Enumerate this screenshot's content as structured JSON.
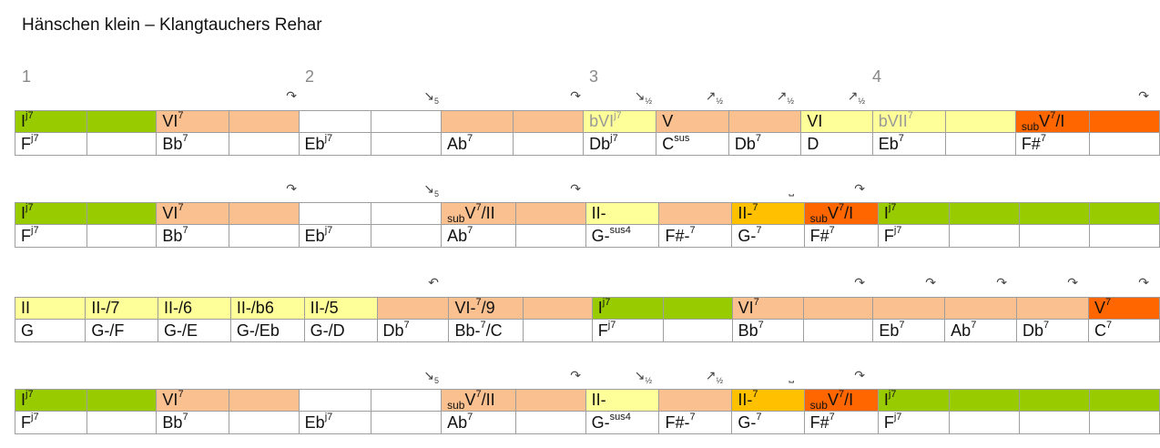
{
  "title": "Hänschen klein – Klangtauchers Rehar",
  "bar_numbers": [
    "1",
    "2",
    "3",
    "4"
  ],
  "glyphs": {
    "turn": "↷",
    "turn2": "↶",
    "down": "↘",
    "up": "↗",
    "bracket": "⎵",
    "five": "5",
    "half": "½"
  },
  "rows": [
    {
      "degrees": [
        {
          "t": "I",
          "s": "j7",
          "c": "green"
        },
        {
          "t": "",
          "c": "green"
        },
        {
          "t": "VI",
          "s": "7",
          "c": "peach"
        },
        {
          "t": "",
          "c": "peach"
        },
        {
          "t": "",
          "c": "white"
        },
        {
          "t": "",
          "c": "white"
        },
        {
          "t": "",
          "c": "peach"
        },
        {
          "t": "",
          "c": "peach"
        },
        {
          "t": "bVI",
          "s": "j7",
          "c": "yellow",
          "grey": true
        },
        {
          "t": "V",
          "c": "peach"
        },
        {
          "t": "",
          "c": "peach"
        },
        {
          "t": "VI",
          "c": "yellow"
        },
        {
          "t": "bVII",
          "s": "7",
          "c": "yellow",
          "grey": true
        },
        {
          "t": "",
          "c": "yellow"
        },
        {
          "p": "sub",
          "t": "V",
          "s": "7",
          "q": "/I",
          "c": "orange"
        },
        {
          "t": "",
          "c": "orange"
        }
      ],
      "chords": [
        {
          "t": "F",
          "s": "j7"
        },
        {
          "t": ""
        },
        {
          "t": "Bb",
          "s": "7"
        },
        {
          "t": ""
        },
        {
          "t": "Eb",
          "s": "j7"
        },
        {
          "t": ""
        },
        {
          "t": "Ab",
          "s": "7"
        },
        {
          "t": ""
        },
        {
          "t": "Db",
          "s": "j7"
        },
        {
          "t": "C",
          "s": "sus"
        },
        {
          "t": "Db",
          "s": "7"
        },
        {
          "t": "D"
        },
        {
          "t": "Eb",
          "s": "7"
        },
        {
          "t": ""
        },
        {
          "t": "F#",
          "s": "7"
        },
        {
          "t": ""
        }
      ]
    },
    {
      "degrees": [
        {
          "t": "I",
          "s": "j7",
          "c": "green"
        },
        {
          "t": "",
          "c": "green"
        },
        {
          "t": "VI",
          "s": "7",
          "c": "peach"
        },
        {
          "t": "",
          "c": "peach"
        },
        {
          "t": "",
          "c": "white"
        },
        {
          "t": "",
          "c": "white"
        },
        {
          "p": "sub",
          "t": "V",
          "s": "7",
          "q": "/II",
          "c": "peach"
        },
        {
          "t": "",
          "c": "peach"
        },
        {
          "t": "II-",
          "c": "yellow"
        },
        {
          "t": "",
          "c": "peach"
        },
        {
          "t": "II-",
          "s": "7",
          "c": "amber"
        },
        {
          "p": "sub",
          "t": "V",
          "s": "7",
          "q": "/I",
          "c": "orange"
        },
        {
          "t": "I",
          "s": "j7",
          "c": "green"
        },
        {
          "t": "",
          "c": "green"
        },
        {
          "t": "",
          "c": "green"
        },
        {
          "t": "",
          "c": "green"
        }
      ],
      "chords": [
        {
          "t": "F",
          "s": "j7"
        },
        {
          "t": ""
        },
        {
          "t": "Bb",
          "s": "7"
        },
        {
          "t": ""
        },
        {
          "t": "Eb",
          "s": "j7"
        },
        {
          "t": ""
        },
        {
          "t": "Ab",
          "s": "7"
        },
        {
          "t": ""
        },
        {
          "t": "G-",
          "s": "sus4"
        },
        {
          "t": "F#-",
          "s": "7"
        },
        {
          "t": "G-",
          "s": "7"
        },
        {
          "t": "F#",
          "s": "7"
        },
        {
          "t": "F",
          "s": "j7"
        },
        {
          "t": ""
        },
        {
          "t": ""
        },
        {
          "t": ""
        }
      ]
    },
    {
      "degrees": [
        {
          "t": "II",
          "c": "yellow"
        },
        {
          "t": "II-/7",
          "c": "yellow"
        },
        {
          "t": "II-/6",
          "c": "yellow"
        },
        {
          "t": "II-/b6",
          "c": "yellow"
        },
        {
          "t": "II-/5",
          "c": "yellow"
        },
        {
          "t": "",
          "c": "peach"
        },
        {
          "t": "VI-",
          "s": "7",
          "q": "/9",
          "c": "peach"
        },
        {
          "t": "",
          "c": "peach"
        },
        {
          "t": "I",
          "s": "j7",
          "c": "green"
        },
        {
          "t": "",
          "c": "green"
        },
        {
          "t": "VI",
          "s": "7",
          "c": "peach"
        },
        {
          "t": "",
          "c": "peach"
        },
        {
          "t": "",
          "c": "peach"
        },
        {
          "t": "",
          "c": "peach"
        },
        {
          "t": "",
          "c": "peach"
        },
        {
          "t": "V",
          "s": "7",
          "c": "orange"
        }
      ],
      "chords": [
        {
          "t": "G"
        },
        {
          "t": "G-/F"
        },
        {
          "t": "G-/E"
        },
        {
          "t": "G-/Eb"
        },
        {
          "t": "G-/D"
        },
        {
          "t": "Db",
          "s": "7"
        },
        {
          "t": "Bb-",
          "s": "7",
          "q": "/C"
        },
        {
          "t": ""
        },
        {
          "t": "F",
          "s": "j7"
        },
        {
          "t": ""
        },
        {
          "t": "Bb",
          "s": "7"
        },
        {
          "t": ""
        },
        {
          "t": "Eb",
          "s": "7"
        },
        {
          "t": "Ab",
          "s": "7"
        },
        {
          "t": "Db",
          "s": "7"
        },
        {
          "t": "C",
          "s": "7"
        }
      ]
    },
    {
      "degrees": [
        {
          "t": "I",
          "s": "j7",
          "c": "green"
        },
        {
          "t": "",
          "c": "green"
        },
        {
          "t": "VI",
          "s": "7",
          "c": "peach"
        },
        {
          "t": "",
          "c": "peach"
        },
        {
          "t": "",
          "c": "white"
        },
        {
          "t": "",
          "c": "white"
        },
        {
          "p": "sub",
          "t": "V",
          "s": "7",
          "q": "/II",
          "c": "peach"
        },
        {
          "t": "",
          "c": "peach"
        },
        {
          "t": "II-",
          "c": "yellow"
        },
        {
          "t": "",
          "c": "peach"
        },
        {
          "t": "II-",
          "s": "7",
          "c": "amber"
        },
        {
          "p": "sub",
          "t": "V",
          "s": "7",
          "q": "/I",
          "c": "orange"
        },
        {
          "t": "I",
          "s": "j7",
          "c": "green"
        },
        {
          "t": "",
          "c": "green"
        },
        {
          "t": "",
          "c": "green"
        },
        {
          "t": "",
          "c": "green"
        }
      ],
      "chords": [
        {
          "t": "F",
          "s": "j7"
        },
        {
          "t": ""
        },
        {
          "t": "Bb",
          "s": "7"
        },
        {
          "t": ""
        },
        {
          "t": "Eb",
          "s": "j7"
        },
        {
          "t": ""
        },
        {
          "t": "Ab",
          "s": "7"
        },
        {
          "t": ""
        },
        {
          "t": "G-",
          "s": "sus4"
        },
        {
          "t": "F#-",
          "s": "7"
        },
        {
          "t": "G-",
          "s": "7"
        },
        {
          "t": "F#",
          "s": "7"
        },
        {
          "t": "F",
          "s": "j7"
        },
        {
          "t": ""
        },
        {
          "t": ""
        },
        {
          "t": ""
        }
      ]
    }
  ],
  "marks": [
    [
      {
        "col": 3,
        "g": "turn"
      },
      {
        "col": 5,
        "g": "down",
        "n": "five"
      },
      {
        "col": 7,
        "g": "turn"
      },
      {
        "col": 8,
        "g": "down",
        "n": "half"
      },
      {
        "col": 9,
        "g": "up",
        "n": "half"
      },
      {
        "col": 10,
        "g": "up",
        "n": "half"
      },
      {
        "col": 11,
        "g": "up",
        "n": "half"
      },
      {
        "col": 15,
        "g": "turn"
      }
    ],
    [
      {
        "col": 3,
        "g": "turn"
      },
      {
        "col": 5,
        "g": "down",
        "n": "five"
      },
      {
        "col": 7,
        "g": "turn"
      },
      {
        "col": 10,
        "g": "bracket"
      },
      {
        "col": 11,
        "g": "turn"
      }
    ],
    [
      {
        "col": 5,
        "g": "turn2"
      },
      {
        "col": 11,
        "g": "turn"
      },
      {
        "col": 12,
        "g": "turn"
      },
      {
        "col": 13,
        "g": "turn"
      },
      {
        "col": 14,
        "g": "turn"
      },
      {
        "col": 15,
        "g": "turn"
      }
    ],
    [
      {
        "col": 5,
        "g": "down",
        "n": "five"
      },
      {
        "col": 7,
        "g": "turn"
      },
      {
        "col": 8,
        "g": "down",
        "n": "half"
      },
      {
        "col": 9,
        "g": "up",
        "n": "half"
      },
      {
        "col": 10,
        "g": "bracket"
      },
      {
        "col": 11,
        "g": "turn"
      }
    ]
  ]
}
